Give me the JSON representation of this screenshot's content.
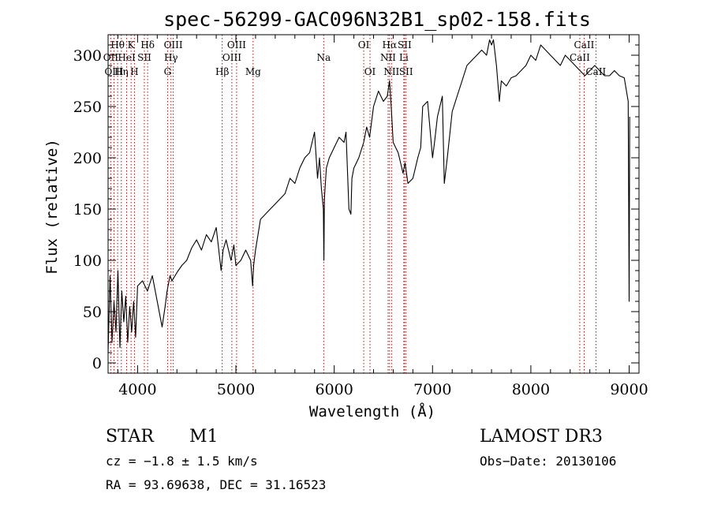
{
  "chart_data": {
    "type": "line",
    "title": "spec-56299-GAC096N32B1_sp02-158.fits",
    "xlabel": "Wavelength (Å)",
    "ylabel": "Flux (relative)",
    "xlim": [
      3700,
      9100
    ],
    "ylim": [
      -10,
      320
    ],
    "xticks": [
      4000,
      5000,
      6000,
      7000,
      8000,
      9000
    ],
    "yticks": [
      0,
      50,
      100,
      150,
      200,
      250,
      300
    ],
    "xtick_labels": [
      "4000",
      "5000",
      "6000",
      "7000",
      "8000",
      "9000"
    ],
    "ytick_labels": [
      "0",
      "50",
      "100",
      "150",
      "200",
      "250",
      "300"
    ],
    "series": [
      {
        "name": "flux",
        "x": [
          3700,
          3720,
          3740,
          3760,
          3780,
          3800,
          3820,
          3840,
          3860,
          3880,
          3900,
          3920,
          3940,
          3960,
          3980,
          4000,
          4050,
          4100,
          4150,
          4200,
          4250,
          4280,
          4300,
          4330,
          4350,
          4400,
          4450,
          4500,
          4550,
          4600,
          4650,
          4700,
          4750,
          4800,
          4850,
          4870,
          4900,
          4950,
          4980,
          5000,
          5050,
          5100,
          5150,
          5170,
          5180,
          5200,
          5250,
          5300,
          5350,
          5400,
          5450,
          5500,
          5550,
          5600,
          5650,
          5700,
          5750,
          5800,
          5830,
          5850,
          5870,
          5890,
          5895,
          5900,
          5920,
          5950,
          6000,
          6050,
          6100,
          6120,
          6150,
          6170,
          6180,
          6200,
          6250,
          6300,
          6330,
          6360,
          6400,
          6450,
          6500,
          6540,
          6563,
          6580,
          6600,
          6650,
          6700,
          6720,
          6750,
          6800,
          6850,
          6880,
          6900,
          6950,
          7000,
          7020,
          7050,
          7100,
          7120,
          7150,
          7200,
          7250,
          7300,
          7350,
          7400,
          7450,
          7500,
          7550,
          7580,
          7600,
          7620,
          7650,
          7680,
          7700,
          7750,
          7800,
          7850,
          7900,
          7950,
          8000,
          8050,
          8100,
          8150,
          8200,
          8250,
          8300,
          8350,
          8400,
          8450,
          8500,
          8550,
          8600,
          8650,
          8700,
          8750,
          8800,
          8850,
          8900,
          8950,
          8990,
          9000,
          9005
        ],
        "y": [
          10,
          85,
          20,
          60,
          30,
          90,
          15,
          70,
          40,
          65,
          20,
          55,
          30,
          60,
          25,
          75,
          80,
          70,
          85,
          60,
          35,
          55,
          70,
          85,
          80,
          88,
          95,
          100,
          112,
          120,
          110,
          125,
          118,
          132,
          90,
          110,
          120,
          100,
          115,
          95,
          100,
          110,
          100,
          75,
          95,
          110,
          140,
          145,
          150,
          155,
          160,
          165,
          180,
          175,
          190,
          200,
          205,
          225,
          180,
          200,
          170,
          150,
          100,
          160,
          190,
          200,
          210,
          220,
          215,
          225,
          150,
          145,
          180,
          190,
          200,
          215,
          230,
          220,
          250,
          265,
          255,
          260,
          275,
          250,
          215,
          205,
          185,
          195,
          175,
          180,
          200,
          210,
          250,
          255,
          200,
          215,
          240,
          260,
          175,
          200,
          245,
          260,
          275,
          290,
          295,
          300,
          305,
          300,
          315,
          310,
          315,
          290,
          255,
          275,
          270,
          278,
          280,
          285,
          290,
          300,
          295,
          310,
          305,
          300,
          295,
          290,
          300,
          295,
          290,
          285,
          280,
          285,
          290,
          285,
          280,
          280,
          285,
          280,
          278,
          255,
          60,
          240
        ]
      }
    ],
    "lines": [
      {
        "label": "Hθ",
        "x": 3797,
        "row": 1
      },
      {
        "label": "OII",
        "x": 3727,
        "row": 2
      },
      {
        "label": "OIII",
        "x": 3760,
        "row": 3
      },
      {
        "label": "K",
        "x": 3934,
        "row": 1
      },
      {
        "label": "HeI",
        "x": 3889,
        "row": 2
      },
      {
        "label": "Hη",
        "x": 3835,
        "row": 3
      },
      {
        "label": "SII",
        "x": 4069,
        "row": 2
      },
      {
        "label": "H",
        "x": 3968,
        "row": 3
      },
      {
        "label": "Hδ",
        "x": 4102,
        "row": 1
      },
      {
        "label": "OIII",
        "x": 4363,
        "row": 1
      },
      {
        "label": "Hγ",
        "x": 4340,
        "row": 2
      },
      {
        "label": "G",
        "x": 4305,
        "row": 3
      },
      {
        "label": "Hβ",
        "x": 4861,
        "row": 3
      },
      {
        "label": "OIII",
        "x": 5007,
        "row": 1
      },
      {
        "label": "OIII",
        "x": 4959,
        "row": 2
      },
      {
        "label": "Mg",
        "x": 5175,
        "row": 3
      },
      {
        "label": "Na",
        "x": 5893,
        "row": 2
      },
      {
        "label": "OI",
        "x": 6300,
        "row": 1
      },
      {
        "label": "OI",
        "x": 6364,
        "row": 3
      },
      {
        "label": "Hα",
        "x": 6563,
        "row": 1
      },
      {
        "label": "SII",
        "x": 6716,
        "row": 1
      },
      {
        "label": "NII",
        "x": 6548,
        "row": 2
      },
      {
        "label": "Li",
        "x": 6708,
        "row": 2
      },
      {
        "label": "NII",
        "x": 6583,
        "row": 3
      },
      {
        "label": "SII",
        "x": 6731,
        "row": 3
      },
      {
        "label": "CaII",
        "x": 8542,
        "row": 1
      },
      {
        "label": "CaII",
        "x": 8498,
        "row": 2
      },
      {
        "label": "CaII",
        "x": 8662,
        "row": 3
      }
    ],
    "info": {
      "class_label": "STAR",
      "subclass": "M1",
      "survey": "LAMOST DR3",
      "cz": "cz = −1.8 ± 1.5 km/s",
      "obs_date": "Obs−Date: 20130106",
      "coords": "RA =  93.69638, DEC =  31.16523"
    },
    "colors": {
      "spectrum": "#000000",
      "line_marker": "#8b0000",
      "axis": "#000000"
    }
  }
}
